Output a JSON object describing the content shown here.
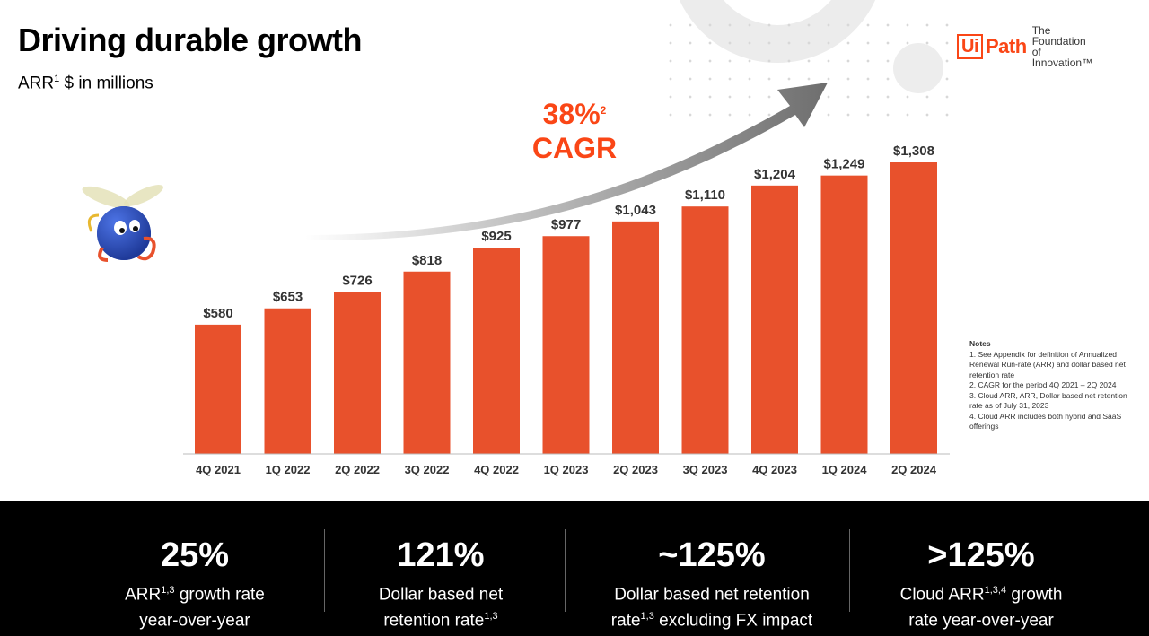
{
  "header": {
    "title": "Driving durable growth",
    "subtitle_prefix": "ARR",
    "subtitle_sup": "1",
    "subtitle_suffix": " $ in millions"
  },
  "logo": {
    "ui": "Ui",
    "path": "Path",
    "tagline_line1": "The Foundation",
    "tagline_line2": "of Innovation™"
  },
  "cagr": {
    "value": "38%",
    "sup": "2",
    "label": "CAGR"
  },
  "colors": {
    "bar": "#e8512c",
    "accent": "#fa4616",
    "band": "#000000"
  },
  "chart_data": {
    "type": "bar",
    "title": "",
    "xlabel": "",
    "ylabel": "ARR $ in millions",
    "ylim": [
      0,
      1308
    ],
    "categories": [
      "4Q 2021",
      "1Q 2022",
      "2Q 2022",
      "3Q 2022",
      "4Q 2022",
      "1Q 2023",
      "2Q 2023",
      "3Q 2023",
      "4Q 2023",
      "1Q 2024",
      "2Q 2024"
    ],
    "values": [
      580,
      653,
      726,
      818,
      925,
      977,
      1043,
      1110,
      1204,
      1249,
      1308
    ],
    "data_labels": [
      "$580",
      "$653",
      "$726",
      "$818",
      "$925",
      "$977",
      "$1,043",
      "$1,110",
      "$1,204",
      "$1,249",
      "$1,308"
    ]
  },
  "notes": {
    "title": "Notes",
    "items": [
      "1. See Appendix for definition of Annualized Renewal Run-rate (ARR) and dollar based net retention rate",
      "2. CAGR for the period 4Q 2021 – 2Q 2024",
      "3. Cloud ARR, ARR, Dollar based net retention rate as of July 31, 2023",
      "4. Cloud ARR includes both hybrid and SaaS offerings"
    ]
  },
  "metrics": [
    {
      "value": "25%",
      "line1_pre": "ARR",
      "line1_sup": "1,3",
      "line1_post": " growth rate",
      "line2_pre": "year-over-year",
      "line2_sup": "",
      "line2_post": ""
    },
    {
      "value": "121%",
      "line1_pre": "Dollar based net",
      "line1_sup": "",
      "line1_post": "",
      "line2_pre": "retention rate",
      "line2_sup": "1,3",
      "line2_post": ""
    },
    {
      "value": "~125%",
      "line1_pre": "Dollar based net retention",
      "line1_sup": "",
      "line1_post": "",
      "line2_pre": "rate",
      "line2_sup": "1,3",
      "line2_post": " excluding FX impact"
    },
    {
      "value": ">125%",
      "line1_pre": "Cloud ARR",
      "line1_sup": "1,3,4",
      "line1_post": " growth",
      "line2_pre": "rate year-over-year",
      "line2_sup": "",
      "line2_post": ""
    }
  ]
}
